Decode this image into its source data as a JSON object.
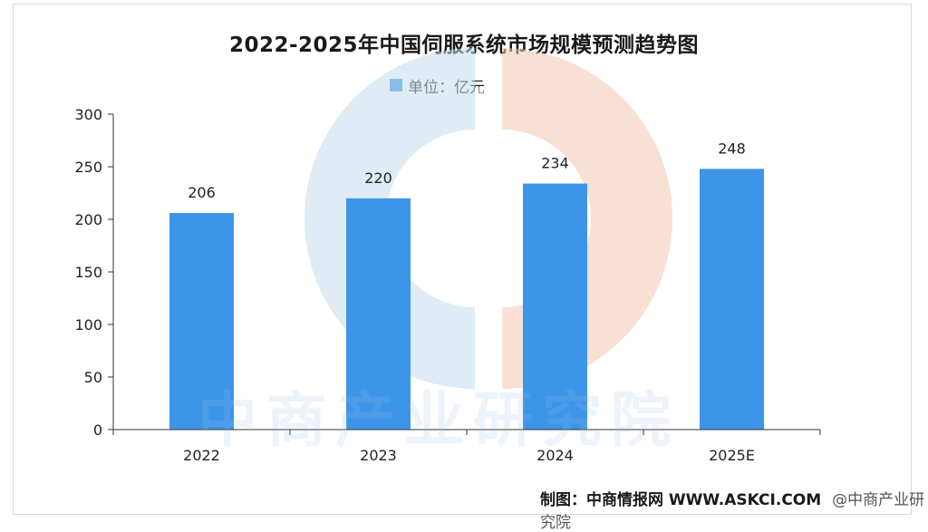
{
  "chart_data": {
    "type": "bar",
    "title": "2022-2025年中国伺服系统市场规模预测趋势图",
    "legend": "单位：亿元",
    "categories": [
      "2022",
      "2023",
      "2024",
      "2025E"
    ],
    "values": [
      206,
      220,
      234,
      248
    ],
    "data_labels": [
      "206",
      "220",
      "234",
      "248"
    ],
    "ylim": [
      0,
      300
    ],
    "yticks": [
      0,
      50,
      100,
      150,
      200,
      250,
      300
    ],
    "xlabel": "",
    "ylabel": "",
    "grid": false,
    "legend_position": "top-center",
    "bar_color": "#3d95ea"
  },
  "watermark": {
    "text": "中商产业研究院"
  },
  "credit": {
    "label": "制图：中商情报网",
    "site": "WWW.ASKCI.COM",
    "brand": "@中商产业研究院"
  }
}
